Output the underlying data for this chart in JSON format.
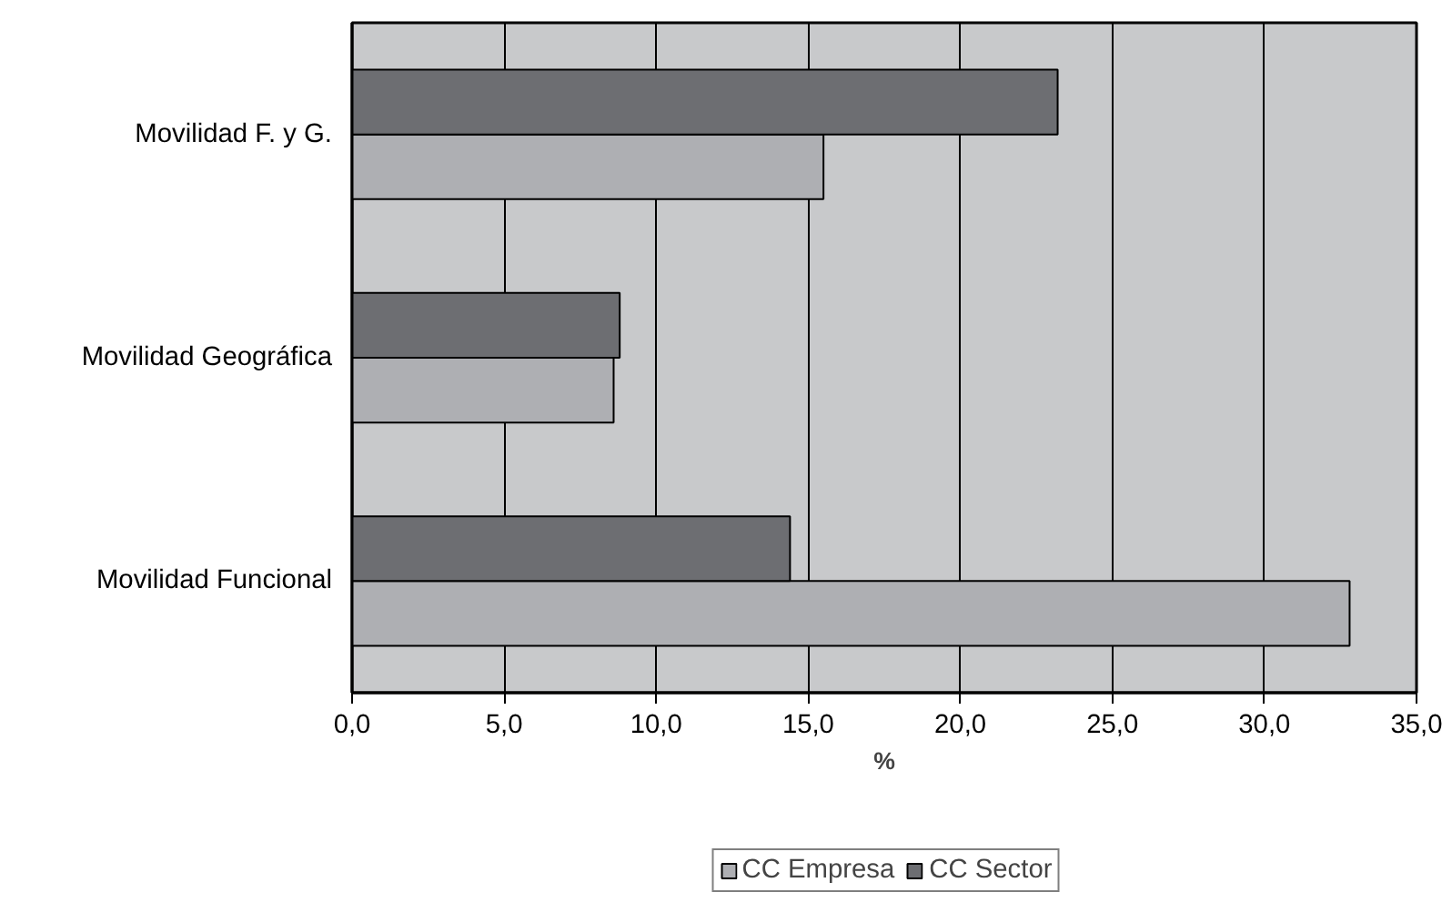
{
  "chart_data": {
    "type": "bar",
    "orientation": "horizontal",
    "xlabel": "%",
    "categories": [
      "Movilidad F. y G.",
      "Movilidad Geográfica",
      "Movilidad Funcional"
    ],
    "series": [
      {
        "name": "CC Empresa",
        "color": "#aeafb3",
        "values": [
          15.5,
          8.6,
          32.8
        ]
      },
      {
        "name": "CC Sector",
        "color": "#6d6e72",
        "values": [
          23.2,
          8.8,
          14.4
        ]
      }
    ],
    "xlim": [
      0,
      35
    ],
    "xticks": [
      {
        "value": 0,
        "label": "0,0"
      },
      {
        "value": 5,
        "label": "5,0"
      },
      {
        "value": 10,
        "label": "10,0"
      },
      {
        "value": 15,
        "label": "15,0"
      },
      {
        "value": 20,
        "label": "20,0"
      },
      {
        "value": 25,
        "label": "25,0"
      },
      {
        "value": 30,
        "label": "30,0"
      },
      {
        "value": 35,
        "label": "35,0"
      }
    ],
    "grid": "x",
    "legend": "bottom"
  }
}
